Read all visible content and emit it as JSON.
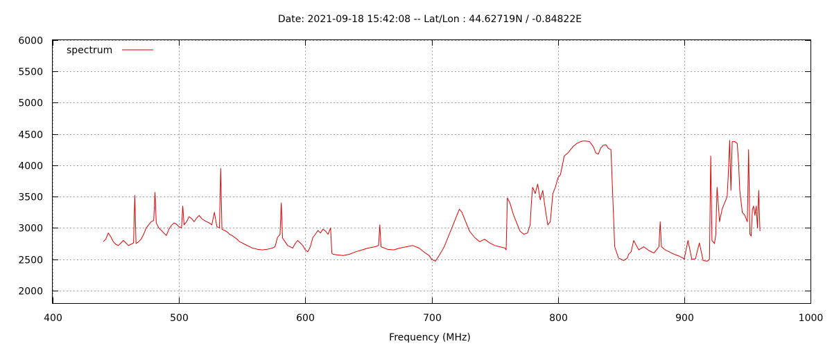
{
  "chart_data": {
    "type": "line",
    "title": "Date: 2021-09-18 15:42:08  --  Lat/Lon : 44.62719N / -0.84822E",
    "xlabel": "Frequency (MHz)",
    "ylabel": "",
    "xlim": [
      400,
      1000
    ],
    "ylim": [
      1800,
      6000
    ],
    "xticks": [
      400,
      500,
      600,
      700,
      800,
      900,
      1000
    ],
    "yticks": [
      2000,
      2500,
      3000,
      3500,
      4000,
      4500,
      5000,
      5500,
      6000
    ],
    "grid": true,
    "legend_position": "top-left",
    "series": [
      {
        "name": "spectrum",
        "color": "#e00000",
        "x": [
          440,
          442,
          444,
          446,
          448,
          450,
          452,
          454,
          456,
          458,
          460,
          462,
          464,
          465,
          466,
          468,
          470,
          472,
          474,
          476,
          478,
          480,
          481,
          482,
          484,
          486,
          488,
          490,
          492,
          494,
          496,
          498,
          500,
          502,
          503,
          504,
          506,
          508,
          510,
          512,
          514,
          516,
          518,
          520,
          522,
          524,
          526,
          528,
          530,
          532,
          533,
          534,
          536,
          538,
          540,
          542,
          544,
          546,
          548,
          550,
          552,
          555,
          558,
          562,
          566,
          570,
          574,
          576,
          578,
          580,
          581,
          582,
          584,
          586,
          588,
          590,
          592,
          594,
          596,
          598,
          600,
          602,
          604,
          606,
          608,
          610,
          612,
          614,
          616,
          618,
          620,
          621,
          622,
          625,
          630,
          635,
          640,
          645,
          650,
          655,
          658,
          659,
          660,
          665,
          670,
          675,
          680,
          685,
          690,
          695,
          698,
          700,
          703,
          706,
          710,
          714,
          718,
          720,
          722,
          724,
          726,
          728,
          730,
          734,
          738,
          742,
          746,
          750,
          754,
          758,
          759,
          760,
          762,
          765,
          768,
          770,
          773,
          776,
          778,
          779,
          780,
          782,
          784,
          786,
          788,
          790,
          792,
          794,
          796,
          798,
          799,
          800,
          802,
          805,
          808,
          810,
          812,
          815,
          818,
          820,
          822,
          825,
          828,
          830,
          832,
          834,
          836,
          838,
          839,
          840,
          842,
          845,
          848,
          850,
          852,
          855,
          856,
          858,
          860,
          864,
          868,
          872,
          876,
          878,
          880,
          881,
          882,
          885,
          888,
          892,
          896,
          899,
          900,
          903,
          906,
          909,
          910,
          912,
          915,
          918,
          919,
          920,
          921,
          922,
          924,
          925,
          926,
          928,
          930,
          932,
          934,
          935,
          936,
          937,
          938,
          940,
          942,
          943,
          944,
          946,
          948,
          950,
          951,
          952,
          953,
          954,
          955,
          956,
          957,
          958,
          959,
          960
        ],
        "values": [
          2780,
          2820,
          2920,
          2860,
          2780,
          2740,
          2720,
          2760,
          2800,
          2760,
          2720,
          2740,
          2760,
          3520,
          2750,
          2780,
          2820,
          2900,
          3000,
          3050,
          3100,
          3120,
          3570,
          3080,
          3000,
          2960,
          2920,
          2880,
          2980,
          3040,
          3080,
          3060,
          3020,
          3000,
          3350,
          3050,
          3100,
          3180,
          3150,
          3100,
          3160,
          3200,
          3150,
          3120,
          3100,
          3080,
          3050,
          3250,
          3020,
          3000,
          3950,
          2980,
          2960,
          2940,
          2900,
          2880,
          2850,
          2820,
          2780,
          2760,
          2740,
          2710,
          2680,
          2660,
          2650,
          2660,
          2680,
          2700,
          2850,
          2900,
          3400,
          2840,
          2780,
          2720,
          2700,
          2680,
          2750,
          2800,
          2760,
          2720,
          2650,
          2620,
          2700,
          2850,
          2900,
          2960,
          2920,
          2980,
          2950,
          2900,
          3000,
          2600,
          2580,
          2570,
          2560,
          2580,
          2620,
          2650,
          2680,
          2700,
          2720,
          3050,
          2700,
          2660,
          2650,
          2680,
          2700,
          2720,
          2680,
          2600,
          2560,
          2500,
          2470,
          2560,
          2700,
          2900,
          3100,
          3200,
          3300,
          3250,
          3150,
          3050,
          2950,
          2850,
          2780,
          2820,
          2760,
          2720,
          2700,
          2680,
          2650,
          3480,
          3400,
          3200,
          3050,
          2950,
          2900,
          2920,
          3050,
          3400,
          3650,
          3550,
          3700,
          3450,
          3600,
          3300,
          3050,
          3100,
          3550,
          3650,
          3720,
          3800,
          3850,
          4150,
          4200,
          4250,
          4300,
          4350,
          4380,
          4390,
          4390,
          4380,
          4300,
          4200,
          4180,
          4280,
          4320,
          4330,
          4300,
          4270,
          4250,
          2700,
          2520,
          2500,
          2480,
          2520,
          2580,
          2620,
          2800,
          2650,
          2700,
          2640,
          2600,
          2650,
          2700,
          3100,
          2700,
          2650,
          2620,
          2580,
          2550,
          2520,
          2500,
          2800,
          2500,
          2510,
          2600,
          2760,
          2480,
          2470,
          2480,
          2500,
          4150,
          2800,
          2750,
          2900,
          3650,
          3100,
          3300,
          3400,
          3500,
          3900,
          4400,
          3600,
          4380,
          4380,
          4350,
          4050,
          3600,
          3250,
          3200,
          3100,
          4250,
          2900,
          2870,
          3300,
          3350,
          3200,
          3350,
          3000,
          3600,
          2950
        ]
      }
    ]
  }
}
